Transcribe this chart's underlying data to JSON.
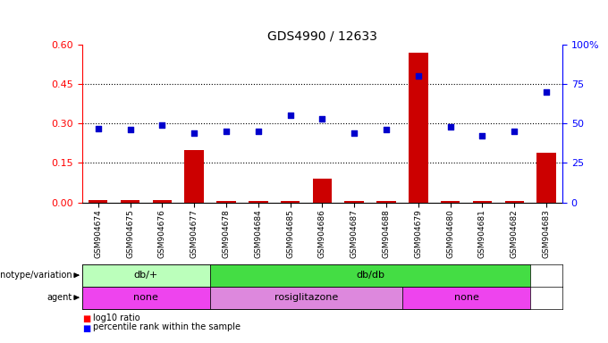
{
  "title": "GDS4990 / 12633",
  "samples": [
    "GSM904674",
    "GSM904675",
    "GSM904676",
    "GSM904677",
    "GSM904678",
    "GSM904684",
    "GSM904685",
    "GSM904686",
    "GSM904687",
    "GSM904688",
    "GSM904679",
    "GSM904680",
    "GSM904681",
    "GSM904682",
    "GSM904683"
  ],
  "log10_ratio": [
    0.008,
    0.008,
    0.008,
    0.2,
    0.004,
    0.004,
    0.004,
    0.09,
    0.004,
    0.004,
    0.57,
    0.004,
    0.004,
    0.004,
    0.19
  ],
  "percentile_rank": [
    47,
    46,
    49,
    44,
    45,
    45,
    55,
    53,
    44,
    46,
    80,
    48,
    42,
    45,
    70
  ],
  "genotype_groups": [
    {
      "label": "db/+",
      "start": 0,
      "end": 4,
      "color": "#bbffbb"
    },
    {
      "label": "db/db",
      "start": 4,
      "end": 14,
      "color": "#44dd44"
    }
  ],
  "agent_groups": [
    {
      "label": "none",
      "start": 0,
      "end": 4,
      "color": "#ee44ee"
    },
    {
      "label": "rosiglitazone",
      "start": 4,
      "end": 10,
      "color": "#dd88dd"
    },
    {
      "label": "none",
      "start": 10,
      "end": 14,
      "color": "#ee44ee"
    }
  ],
  "bar_color": "#cc0000",
  "dot_color": "#0000cc",
  "left_ylim": [
    0,
    0.6
  ],
  "right_ylim": [
    0,
    100
  ],
  "left_yticks": [
    0,
    0.15,
    0.3,
    0.45,
    0.6
  ],
  "right_yticks": [
    0,
    25,
    50,
    75,
    100
  ],
  "right_yticklabels": [
    "0",
    "25",
    "50",
    "75",
    "100%"
  ],
  "hline_values": [
    0.15,
    0.3,
    0.45
  ],
  "plot_bg": "#ffffff"
}
